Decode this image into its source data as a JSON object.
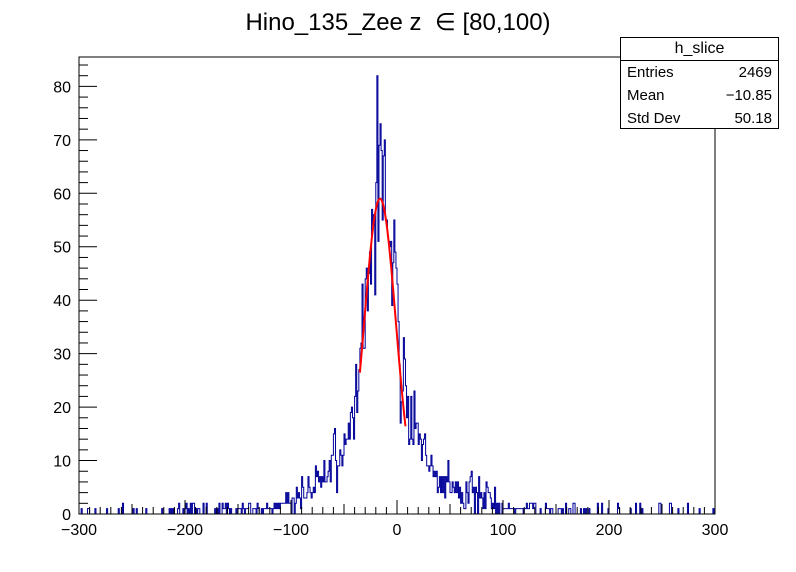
{
  "title": "Hino_135_Zee z  ∈ [80,100)",
  "stats": {
    "name": "h_slice",
    "entries_label": "Entries",
    "entries_value": "2469",
    "mean_label": "Mean",
    "mean_value": "−10.85",
    "stddev_label": "Std Dev",
    "stddev_value": "50.18"
  },
  "colors": {
    "histogram": "#000099",
    "fit": "#ff0000",
    "axes": "#000000"
  },
  "chart_data": {
    "type": "histogram",
    "title": "Hino_135_Zee z  ∈ [80,100)",
    "xlabel": "",
    "ylabel": "",
    "xlim": [
      -300,
      300
    ],
    "ylim": [
      0,
      85.5
    ],
    "x_ticks": [
      -300,
      -200,
      -100,
      0,
      100,
      200,
      300
    ],
    "x_tick_labels": [
      "−300",
      "−200",
      "−100",
      "0",
      "100",
      "200",
      "300"
    ],
    "y_ticks": [
      0,
      10,
      20,
      30,
      40,
      50,
      60,
      70,
      80
    ],
    "y_tick_labels": [
      "0",
      "10",
      "20",
      "30",
      "40",
      "50",
      "60",
      "70",
      "80"
    ],
    "bin_width": 1,
    "histogram": {
      "name": "h_slice",
      "entries": 2469,
      "mean": -10.85,
      "std_dev": 50.18,
      "envelope_x": [
        -280,
        -250,
        -200,
        -150,
        -120,
        -100,
        -90,
        -80,
        -70,
        -60,
        -50,
        -45,
        -40,
        -35,
        -30,
        -27,
        -25,
        -22,
        -20,
        -18,
        -15,
        -12,
        -10,
        -8,
        -5,
        -2,
        0,
        2,
        5,
        8,
        10,
        15,
        20,
        25,
        30,
        40,
        50,
        60,
        70,
        80,
        90,
        100,
        120,
        140,
        170,
        200,
        240,
        280,
        300
      ],
      "envelope_y": [
        0.3,
        0.3,
        0.6,
        1.0,
        1.5,
        2.5,
        3.5,
        5,
        7,
        8,
        11,
        15,
        21,
        28,
        38,
        45,
        51,
        56,
        59,
        60,
        62,
        63,
        60,
        55,
        50,
        44,
        38,
        32,
        26,
        22,
        20,
        16,
        13,
        11,
        9,
        6.5,
        5,
        4.5,
        4,
        3,
        2.5,
        2,
        1.3,
        1.0,
        0.6,
        0.5,
        0.3,
        0.3,
        0.2
      ],
      "peak_value": 82,
      "peak_x": -19
    },
    "fit": {
      "type": "gaussian",
      "mean": -16,
      "sigma": 15,
      "amplitude": 59,
      "x_range": [
        -35,
        8
      ]
    },
    "legend": "top-right stats box",
    "grid": false
  }
}
